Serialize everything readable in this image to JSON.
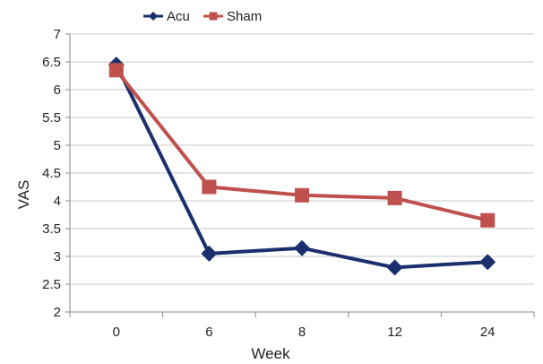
{
  "chart_data": {
    "type": "line",
    "title": "",
    "xlabel": "Week",
    "ylabel": "VAS",
    "categories": [
      "0",
      "6",
      "8",
      "12",
      "24"
    ],
    "ylim": [
      2,
      7
    ],
    "ystep": 0.5,
    "yticks": [
      "2",
      "2.5",
      "3",
      "3.5",
      "4",
      "4.5",
      "5",
      "5.5",
      "6",
      "6.5",
      "7"
    ],
    "grid": true,
    "legend": "top-left",
    "series": [
      {
        "name": "Acu",
        "values": [
          6.45,
          3.05,
          3.15,
          2.8,
          2.9
        ],
        "color": "#1b2f6e",
        "marker": "diamond"
      },
      {
        "name": "Sham",
        "values": [
          6.35,
          4.25,
          4.1,
          4.05,
          3.65
        ],
        "color": "#c0504d",
        "marker": "square"
      }
    ]
  }
}
